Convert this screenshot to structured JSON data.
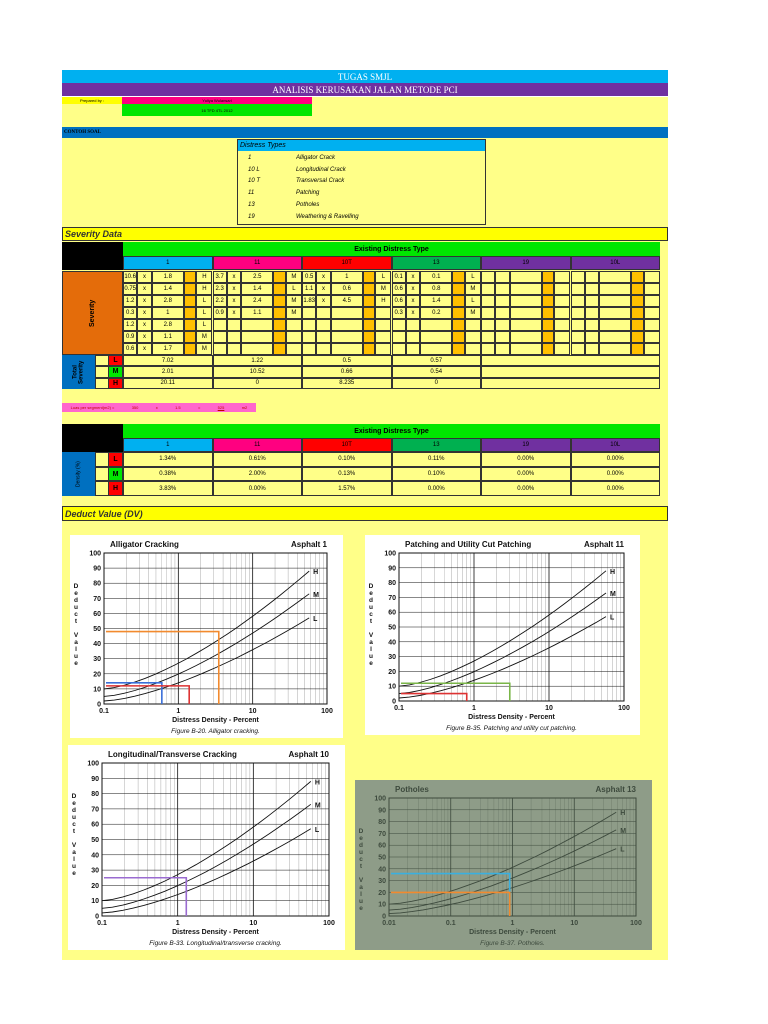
{
  "header": {
    "title": "TUGAS SMJL",
    "subtitle": "ANALISIS KERUSAKAN JALAN METODE PCI",
    "prepared_label": "Prepared by :",
    "prepared_name": "Yuliya Wulansari",
    "prepared_id": "16 TFD 4TL 2012"
  },
  "example": {
    "title": "CONTOH SOAL",
    "distress_header": "Distress Types",
    "distress_types": [
      [
        "1",
        "Alligator Crack"
      ],
      [
        "10 L",
        "Longitudinal Crack"
      ],
      [
        "10 T",
        "Transversal Crack"
      ],
      [
        "11",
        "Patching"
      ],
      [
        "13",
        "Potholes"
      ],
      [
        "19",
        "Weathering & Ravelling"
      ]
    ]
  },
  "severity": {
    "title": "Severity Data",
    "header": "Existing Distress Type",
    "columns": [
      "1",
      "11",
      "10T",
      "13",
      "19",
      "10L"
    ],
    "side_label": "Severity",
    "total_label": "Total Severity",
    "levels": [
      "L",
      "M",
      "H"
    ],
    "times": "x",
    "entries": [
      [
        [
          10.6,
          1.8,
          "H"
        ],
        [
          0.75,
          1.4,
          "H"
        ],
        [
          1.2,
          2.8,
          "L"
        ],
        [
          0.3,
          1,
          "L"
        ],
        [
          1.2,
          2.8,
          "L"
        ],
        [
          0.9,
          1.1,
          "M"
        ],
        [
          0.6,
          1.7,
          "M"
        ]
      ],
      [
        [
          3.7,
          2.5,
          "M"
        ],
        [
          2.3,
          1.4,
          "L"
        ],
        [
          2.2,
          2.4,
          "M"
        ],
        [
          0.9,
          1.1,
          "M"
        ]
      ],
      [
        [
          0.5,
          1,
          "L"
        ],
        [
          1.1,
          0.6,
          "M"
        ],
        [
          1.83,
          4.5,
          "H"
        ]
      ],
      [
        [
          0.1,
          0.1,
          "L"
        ],
        [
          0.6,
          0.8,
          "M"
        ],
        [
          0.6,
          1.4,
          "L"
        ],
        [
          0.3,
          0.2,
          "M"
        ]
      ],
      [],
      []
    ],
    "totals": [
      [
        7.02,
        1.22,
        0.5,
        0.57
      ],
      [
        2.01,
        10.52,
        0.66,
        0.54
      ],
      [
        20.11,
        0,
        8.235,
        0
      ]
    ]
  },
  "area": {
    "label": "Luas per segment(m2) =",
    "length": 350,
    "times": "x",
    "width": 1.5,
    "equals": "=",
    "total": 525,
    "unit": "m2"
  },
  "density": {
    "header": "Existing Distress Type",
    "columns": [
      "1",
      "11",
      "10T",
      "13",
      "19",
      "10L"
    ],
    "side_label": "Density (%)",
    "levels": [
      "L",
      "M",
      "H"
    ],
    "rows": [
      [
        "1.34%",
        "0.61%",
        "0.10%",
        "0.11%",
        "0.00%",
        "0.00%"
      ],
      [
        "0.38%",
        "2.00%",
        "0.13%",
        "0.10%",
        "0.00%",
        "0.00%"
      ],
      [
        "3.83%",
        "0.00%",
        "1.57%",
        "0.00%",
        "0.00%",
        "0.00%"
      ]
    ]
  },
  "deduct": {
    "title": "Deduct Value (DV)",
    "charts": [
      {
        "title": "Alligator Cracking",
        "tag": "Asphalt 1",
        "xticks": [
          0.1,
          1,
          10,
          100
        ],
        "yticks": [
          0,
          10,
          20,
          30,
          40,
          50,
          60,
          70,
          80,
          90,
          100
        ],
        "x_label": "Distress Density - Percent",
        "y_label": "Deduct Value",
        "curve_labels": [
          "H",
          "M",
          "L"
        ],
        "caption": "Figure B-20.  Alligator cracking."
      },
      {
        "title": "Patching and Utility Cut Patching",
        "tag": "Asphalt 11",
        "xticks": [
          0.1,
          1,
          10,
          100
        ],
        "yticks": [
          0,
          10,
          20,
          30,
          40,
          50,
          60,
          70,
          80,
          90,
          100
        ],
        "x_label": "Distress Density - Percent",
        "y_label": "Deduct Value",
        "curve_labels": [
          "H",
          "M",
          "L"
        ],
        "caption": "Figure B-35.  Patching and utility cut patching."
      },
      {
        "title": "Longitudinal/Transverse Cracking",
        "tag": "Asphalt 10",
        "xticks": [
          0.1,
          1,
          10,
          100
        ],
        "yticks": [
          0,
          10,
          20,
          30,
          40,
          50,
          60,
          70,
          80,
          90,
          100
        ],
        "x_label": "Distress Density - Percent",
        "y_label": "Deduct Value",
        "curve_labels": [
          "H",
          "M",
          "L"
        ],
        "caption": "Figure B-33.  Longitudinal/transverse cracking."
      },
      {
        "title": "Potholes",
        "tag": "Asphalt 13",
        "xticks": [
          0.01,
          0.1,
          1,
          10,
          100
        ],
        "yticks": [
          0,
          10,
          20,
          30,
          40,
          50,
          60,
          70,
          80,
          90,
          100
        ],
        "x_label": "Distress Density - Percent",
        "y_label": "Deduct Value",
        "curve_labels": [
          "H",
          "M",
          "L"
        ],
        "caption": "Figure B-37.  Potholes."
      }
    ]
  }
}
